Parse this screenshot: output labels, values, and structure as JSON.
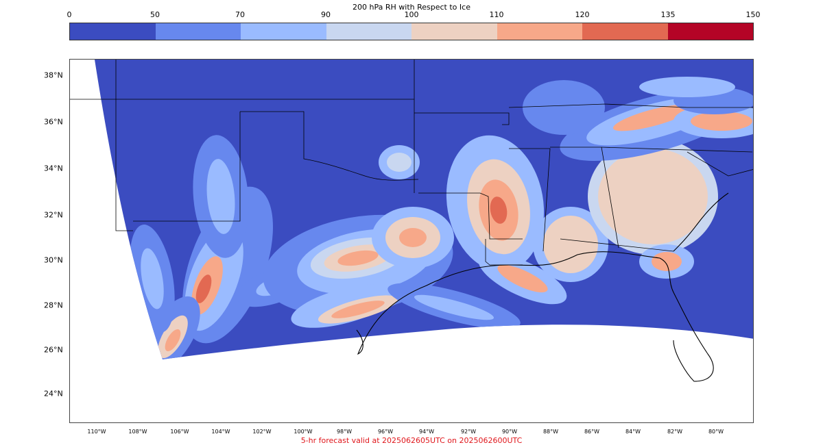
{
  "title": "200 hPa RH with Respect to Ice",
  "colorbar": {
    "tick_labels": [
      "0",
      "50",
      "70",
      "90",
      "100",
      "110",
      "120",
      "135",
      "150"
    ],
    "colors": [
      "#3b4cc0",
      "#6788ee",
      "#9abbff",
      "#c9d7f0",
      "#edd1c2",
      "#f7a889",
      "#e26952",
      "#b40426"
    ]
  },
  "lat_labels": [
    "38°N",
    "36°N",
    "34°N",
    "32°N",
    "30°N",
    "28°N",
    "26°N",
    "24°N"
  ],
  "lon_labels": [
    "110°W",
    "108°W",
    "106°W",
    "104°W",
    "102°W",
    "100°W",
    "98°W",
    "96°W",
    "94°W",
    "92°W",
    "90°W",
    "88°W",
    "86°W",
    "84°W",
    "82°W",
    "80°W"
  ],
  "footer": "5-hr forecast valid at 2025062605UTC on 2025062600UTC",
  "map": {
    "lon_range": [
      -111.3,
      -78.2
    ],
    "lat_range": [
      22.5,
      38.7
    ],
    "background_color": "#3b4cc0",
    "coastline_color": "#000000"
  }
}
